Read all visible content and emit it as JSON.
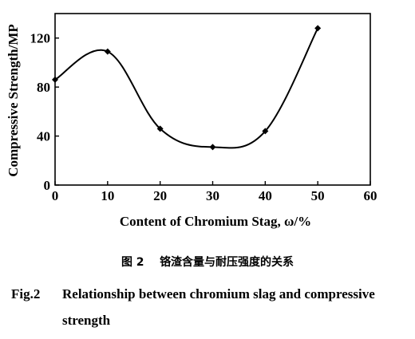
{
  "chart_data": {
    "type": "line",
    "xlabel": "Content of Chromium Stag, ω/%",
    "ylabel": "Compressive Strength/MP",
    "xlim": [
      0,
      60
    ],
    "ylim": [
      0,
      140
    ],
    "xticks": [
      0,
      10,
      20,
      30,
      40,
      50,
      60
    ],
    "yticks": [
      0,
      40,
      80,
      120
    ],
    "grid": false,
    "series": [
      {
        "x": [
          0,
          10,
          20,
          30,
          40,
          50
        ],
        "y": [
          86,
          109,
          46,
          31,
          44,
          128
        ]
      }
    ],
    "smoothed": true,
    "marker": "diamond",
    "line_color": "#000000"
  },
  "caption": {
    "cn_number": "图 2",
    "cn_text": "铬渣含量与耐压强度的关系",
    "en_number": "Fig.2",
    "en_text_line1": "Relationship between chromium slag and compressive",
    "en_text_line2": "strength"
  }
}
